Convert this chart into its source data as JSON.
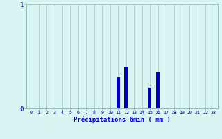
{
  "hours": [
    0,
    1,
    2,
    3,
    4,
    5,
    6,
    7,
    8,
    9,
    10,
    11,
    12,
    13,
    14,
    15,
    16,
    17,
    18,
    19,
    20,
    21,
    22,
    23
  ],
  "values": [
    0,
    0,
    0,
    0,
    0,
    0,
    0,
    0,
    0,
    0,
    0,
    0.3,
    0.4,
    0,
    0,
    0.2,
    0.35,
    0,
    0,
    0,
    0,
    0,
    0,
    0
  ],
  "bar_color": "#0000bb",
  "background_color": "#d8f5f2",
  "grid_color": "#aacfcc",
  "axis_color": "#8ab0b0",
  "text_color": "#0000cc",
  "xlabel_text": "Précipitations 6min ( mm )",
  "ylim": [
    0,
    1.0
  ],
  "xlim": [
    -0.5,
    23.5
  ],
  "bar_width": 0.4
}
